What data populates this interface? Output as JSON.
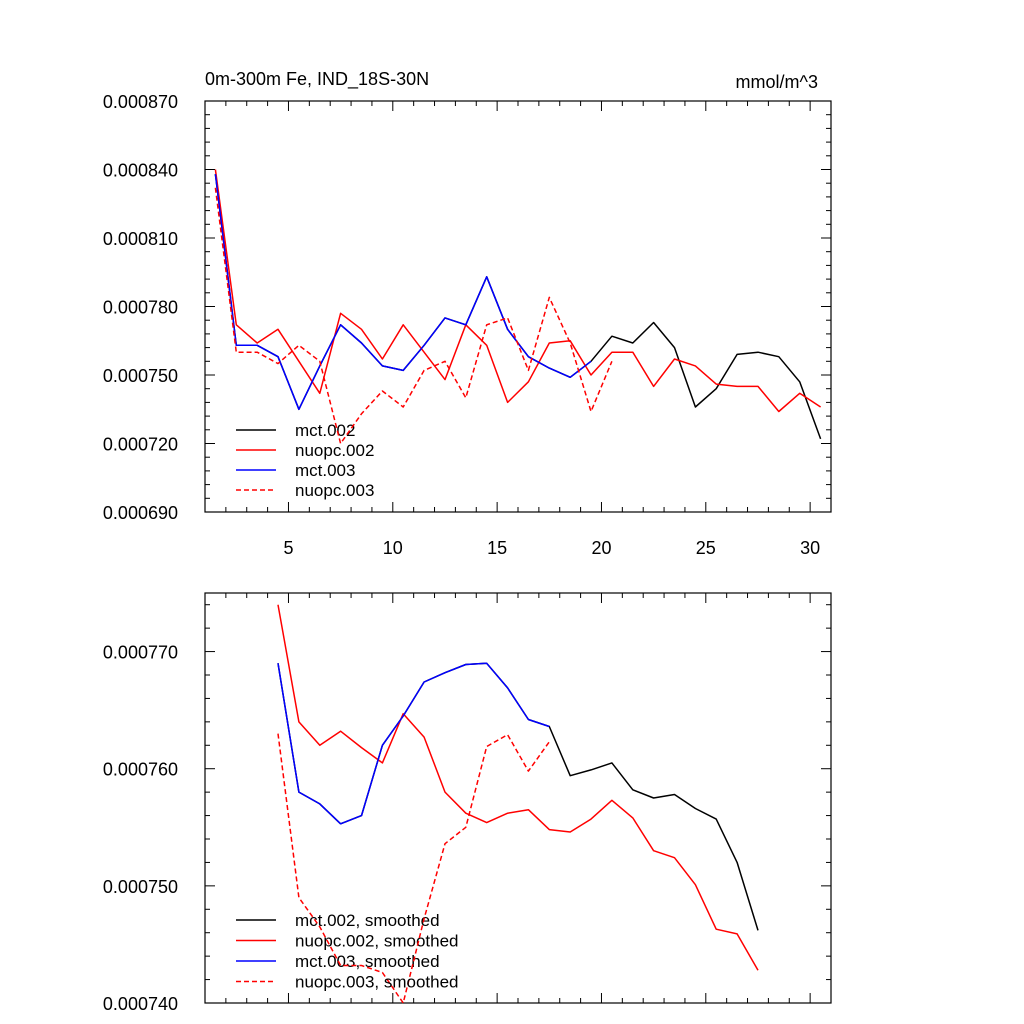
{
  "chart_data": [
    {
      "type": "line",
      "title": "0m-300m Fe, IND_18S-30N",
      "units": "mmol/m^3",
      "xlabel": "",
      "ylabel": "",
      "xlim": [
        1,
        31
      ],
      "ylim": [
        0.00069,
        0.00087
      ],
      "x_ticks": [
        5,
        10,
        15,
        20,
        25,
        30
      ],
      "x_tick_labels": [
        "5",
        "10",
        "15",
        "20",
        "25",
        "30"
      ],
      "y_ticks": [
        0.00069,
        0.00072,
        0.00075,
        0.00078,
        0.00081,
        0.00084,
        0.00087
      ],
      "y_tick_labels": [
        "0.000690",
        "0.000720",
        "0.000750",
        "0.000780",
        "0.000810",
        "0.000840",
        "0.000870"
      ],
      "legend": "bottom-left",
      "series": [
        {
          "name": "mct.002",
          "color": "#000000",
          "dash": "solid",
          "x": [
            1.5,
            2.5,
            3.5,
            4.5,
            5.5,
            6.5,
            7.5,
            8.5,
            9.5,
            10.5,
            11.5,
            12.5,
            13.5,
            14.5,
            15.5,
            16.5,
            17.5,
            18.5,
            19.5,
            20.5,
            21.5,
            22.5,
            23.5,
            24.5,
            25.5,
            26.5,
            27.5,
            28.5,
            29.5,
            30.5
          ],
          "values": [
            0.000838,
            0.000763,
            0.000763,
            0.000758,
            0.000735,
            0.000754,
            0.000772,
            0.000764,
            0.000754,
            0.000752,
            0.000763,
            0.000775,
            0.000772,
            0.000793,
            0.00077,
            0.000758,
            0.000753,
            0.000749,
            0.000756,
            0.000767,
            0.000764,
            0.000773,
            0.000762,
            0.000736,
            0.000744,
            0.000759,
            0.00076,
            0.000758,
            0.000747,
            0.000722
          ]
        },
        {
          "name": "nuopc.002",
          "color": "#ff0000",
          "dash": "solid",
          "x": [
            1.5,
            2.5,
            3.5,
            4.5,
            5.5,
            6.5,
            7.5,
            8.5,
            9.5,
            10.5,
            11.5,
            12.5,
            13.5,
            14.5,
            15.5,
            16.5,
            17.5,
            18.5,
            19.5,
            20.5,
            21.5,
            22.5,
            23.5,
            24.5,
            25.5,
            26.5,
            27.5,
            28.5,
            29.5,
            30.5
          ],
          "values": [
            0.00084,
            0.000772,
            0.000764,
            0.00077,
            0.000756,
            0.000742,
            0.000777,
            0.00077,
            0.000757,
            0.000772,
            0.00076,
            0.000748,
            0.000772,
            0.000763,
            0.000738,
            0.000747,
            0.000764,
            0.000765,
            0.00075,
            0.00076,
            0.00076,
            0.000745,
            0.000757,
            0.000754,
            0.000746,
            0.000745,
            0.000745,
            0.000734,
            0.000742,
            0.000736
          ]
        },
        {
          "name": "mct.003",
          "color": "#0000ff",
          "dash": "solid",
          "x": [
            1.5,
            2.5,
            3.5,
            4.5,
            5.5,
            6.5,
            7.5,
            8.5,
            9.5,
            10.5,
            11.5,
            12.5,
            13.5,
            14.5,
            15.5,
            16.5,
            17.5,
            18.5,
            19.5
          ],
          "values": [
            0.000838,
            0.000763,
            0.000763,
            0.000758,
            0.000735,
            0.000754,
            0.000772,
            0.000764,
            0.000754,
            0.000752,
            0.000763,
            0.000775,
            0.000772,
            0.000793,
            0.00077,
            0.000758,
            0.000753,
            0.000749,
            0.000756
          ]
        },
        {
          "name": "nuopc.003",
          "color": "#ff0000",
          "dash": "dashed",
          "x": [
            1.5,
            2.5,
            3.5,
            4.5,
            5.5,
            6.5,
            7.5,
            8.5,
            9.5,
            10.5,
            11.5,
            12.5,
            13.5,
            14.5,
            15.5,
            16.5,
            17.5,
            18.5,
            19.5,
            20.5
          ],
          "values": [
            0.000832,
            0.00076,
            0.00076,
            0.000755,
            0.000763,
            0.000756,
            0.00072,
            0.000733,
            0.000743,
            0.000736,
            0.000752,
            0.000756,
            0.00074,
            0.000772,
            0.000775,
            0.000752,
            0.000784,
            0.000764,
            0.000734,
            0.000756
          ]
        }
      ]
    },
    {
      "type": "line",
      "title": "",
      "xlabel": "",
      "ylabel": "",
      "xlim": [
        1,
        31
      ],
      "ylim": [
        0.00074,
        0.000775
      ],
      "x_ticks": [
        5,
        10,
        15,
        20,
        25,
        30
      ],
      "x_tick_labels": [],
      "y_ticks": [
        0.00074,
        0.00075,
        0.00076,
        0.00077
      ],
      "y_tick_labels": [
        "0.000740",
        "0.000750",
        "0.000760",
        "0.000770"
      ],
      "legend": "bottom-left",
      "series": [
        {
          "name": "mct.002, smoothed",
          "color": "#000000",
          "dash": "solid",
          "x": [
            4.5,
            5.5,
            6.5,
            7.5,
            8.5,
            9.5,
            10.5,
            11.5,
            12.5,
            13.5,
            14.5,
            15.5,
            16.5,
            17.5,
            18.5,
            19.5,
            20.5,
            21.5,
            22.5,
            23.5,
            24.5,
            25.5,
            26.5,
            27.5
          ],
          "values": [
            0.000769,
            0.000758,
            0.000757,
            0.0007553,
            0.000756,
            0.000762,
            0.0007645,
            0.0007674,
            0.0007682,
            0.0007689,
            0.000769,
            0.0007669,
            0.0007642,
            0.0007636,
            0.0007594,
            0.0007599,
            0.0007605,
            0.0007582,
            0.0007575,
            0.0007578,
            0.0007566,
            0.0007557,
            0.000752,
            0.0007462
          ]
        },
        {
          "name": "nuopc.002, smoothed",
          "color": "#ff0000",
          "dash": "solid",
          "x": [
            4.5,
            5.5,
            6.5,
            7.5,
            8.5,
            9.5,
            10.5,
            11.5,
            12.5,
            13.5,
            14.5,
            15.5,
            16.5,
            17.5,
            18.5,
            19.5,
            20.5,
            21.5,
            22.5,
            23.5,
            24.5,
            25.5,
            26.5,
            27.5
          ],
          "values": [
            0.000774,
            0.000764,
            0.000762,
            0.0007632,
            0.0007618,
            0.0007605,
            0.0007647,
            0.0007627,
            0.000758,
            0.0007562,
            0.0007554,
            0.0007562,
            0.0007565,
            0.0007548,
            0.0007546,
            0.0007557,
            0.0007573,
            0.0007558,
            0.000753,
            0.0007524,
            0.0007501,
            0.0007463,
            0.0007459,
            0.0007428
          ]
        },
        {
          "name": "mct.003, smoothed",
          "color": "#0000ff",
          "dash": "solid",
          "x": [
            4.5,
            5.5,
            6.5,
            7.5,
            8.5,
            9.5,
            10.5,
            11.5,
            12.5,
            13.5,
            14.5,
            15.5,
            16.5,
            17.5
          ],
          "values": [
            0.000769,
            0.000758,
            0.000757,
            0.0007553,
            0.000756,
            0.000762,
            0.0007645,
            0.0007674,
            0.0007682,
            0.0007689,
            0.000769,
            0.0007669,
            0.0007642,
            0.0007636
          ]
        },
        {
          "name": "nuopc.003, smoothed",
          "color": "#ff0000",
          "dash": "dashed",
          "x": [
            4.5,
            5.5,
            6.5,
            7.5,
            8.5,
            9.5,
            10.5,
            11.5,
            12.5,
            13.5,
            14.5,
            15.5,
            16.5,
            17.5
          ],
          "values": [
            0.000763,
            0.000749,
            0.0007465,
            0.0007432,
            0.0007432,
            0.0007426,
            0.00074,
            0.0007472,
            0.0007536,
            0.000755,
            0.0007619,
            0.0007629,
            0.0007598,
            0.0007623
          ]
        }
      ]
    }
  ]
}
